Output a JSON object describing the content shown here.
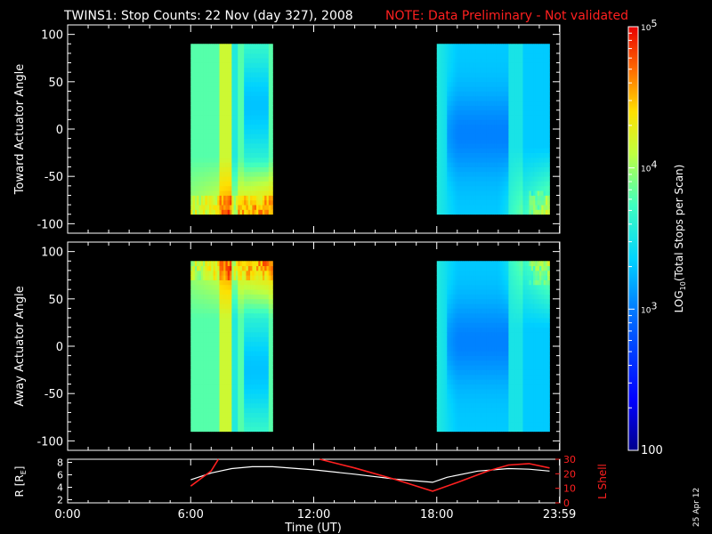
{
  "title": "TWINS1: Stop Counts: 22 Nov (day 327), 2008",
  "note": "NOTE: Data Preliminary - Not validated",
  "datestamp": "25 Apr 12",
  "colors": {
    "background": "#000000",
    "axes": "#ffffff",
    "note": "#ff2020",
    "r_line": "#ffffff",
    "l_line": "#ff2020"
  },
  "chart_data": [
    {
      "type": "heatmap",
      "panel": "toward",
      "ylabel": "Toward Actuator Angle",
      "xlim": [
        0,
        24
      ],
      "ylim": [
        -110,
        110
      ],
      "yticks": [
        -100,
        -50,
        0,
        50,
        100
      ],
      "data_windows": [
        [
          6.0,
          10.0
        ],
        [
          18.0,
          23.5
        ]
      ],
      "angle_range": [
        -90,
        90
      ]
    },
    {
      "type": "heatmap",
      "panel": "away",
      "ylabel": "Away Actuator Angle",
      "xlim": [
        0,
        24
      ],
      "ylim": [
        -110,
        110
      ],
      "yticks": [
        -100,
        -50,
        0,
        50,
        100
      ],
      "data_windows": [
        [
          6.0,
          10.0
        ],
        [
          18.0,
          23.5
        ]
      ],
      "angle_range": [
        -90,
        90
      ]
    },
    {
      "type": "line",
      "panel": "orbit",
      "ylabel": "R [R",
      "ylabel_sub": "E",
      "ylabel_end": "]",
      "y2label": "L Shell",
      "xlabel": "Time (UT)",
      "xlim": [
        0,
        24
      ],
      "xticks": [
        0,
        6,
        12,
        18,
        23.983
      ],
      "xtick_labels": [
        "0:00",
        "6:00",
        "12:00",
        "18:00",
        "23:59"
      ],
      "ylim": [
        1.5,
        8.5
      ],
      "yticks": [
        2,
        4,
        6,
        8
      ],
      "y2lim": [
        0,
        30
      ],
      "y2ticks": [
        0,
        10,
        20,
        30
      ],
      "series": [
        {
          "axis": "left",
          "color": "#ffffff",
          "x": [
            6.0,
            7.0,
            8.0,
            9.0,
            10.0,
            12.0,
            14.0,
            16.0,
            17.8,
            18.5,
            20.0,
            21.5,
            22.5,
            23.5
          ],
          "y": [
            5.2,
            6.3,
            7.0,
            7.3,
            7.3,
            6.8,
            6.1,
            5.3,
            4.8,
            5.6,
            6.6,
            7.0,
            6.9,
            6.6
          ]
        },
        {
          "axis": "right",
          "color": "#ff2020",
          "segments": [
            {
              "x": [
                6.0,
                7.0,
                7.35
              ],
              "y": [
                11.5,
                22,
                30
              ]
            },
            {
              "x": [
                12.3,
                14.0,
                16.0,
                17.8,
                19.0,
                20.5,
                21.5,
                22.5,
                23.5
              ],
              "y": [
                30,
                24,
                16,
                8,
                14,
                22,
                26,
                27,
                24
              ]
            }
          ]
        }
      ]
    },
    {
      "type": "colorbar",
      "label_prefix": "LOG",
      "label_sub": "10",
      "label_rest": "(Total Stops per Scan)",
      "scale": "log",
      "range": [
        100,
        100000
      ],
      "tick_labels": [
        {
          "value": 100000,
          "base": "10",
          "exp": "5"
        },
        {
          "value": 10000,
          "base": "10",
          "exp": "4"
        },
        {
          "value": 1000,
          "base": "10",
          "exp": "3"
        },
        {
          "value": 100,
          "base": "100",
          "exp": ""
        }
      ]
    }
  ]
}
